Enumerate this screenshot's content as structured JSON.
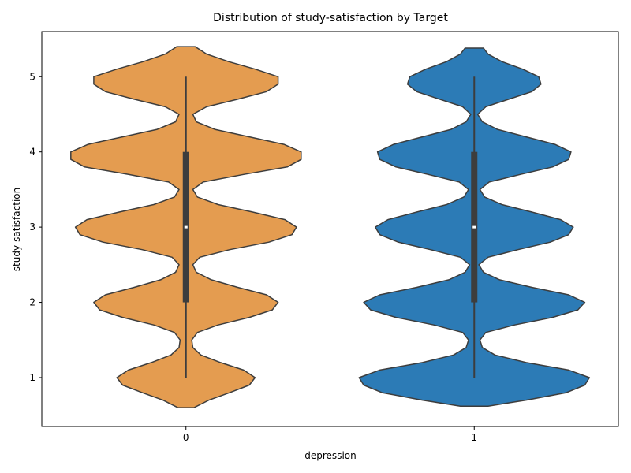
{
  "chart_data": {
    "type": "violin",
    "title": "Distribution of study-satisfaction by Target",
    "xlabel": "depression",
    "ylabel": "study-satisfaction",
    "categories": [
      "0",
      "1"
    ],
    "ylim": [
      0.35,
      5.6
    ],
    "yticks": [
      1,
      2,
      3,
      4,
      5
    ],
    "grid": false,
    "legend": "none",
    "series": [
      {
        "category": "0",
        "color": "#e49c50",
        "range": [
          0.6,
          5.4
        ],
        "density_profile": [
          [
            0.6,
            0.07
          ],
          [
            0.7,
            0.2
          ],
          [
            0.8,
            0.38
          ],
          [
            0.9,
            0.55
          ],
          [
            1.0,
            0.6
          ],
          [
            1.1,
            0.5
          ],
          [
            1.2,
            0.3
          ],
          [
            1.3,
            0.13
          ],
          [
            1.4,
            0.06
          ],
          [
            1.5,
            0.05
          ],
          [
            1.6,
            0.1
          ],
          [
            1.7,
            0.28
          ],
          [
            1.8,
            0.55
          ],
          [
            1.9,
            0.75
          ],
          [
            2.0,
            0.8
          ],
          [
            2.1,
            0.7
          ],
          [
            2.2,
            0.45
          ],
          [
            2.3,
            0.22
          ],
          [
            2.4,
            0.09
          ],
          [
            2.5,
            0.06
          ],
          [
            2.6,
            0.12
          ],
          [
            2.7,
            0.38
          ],
          [
            2.8,
            0.72
          ],
          [
            2.9,
            0.92
          ],
          [
            3.0,
            0.96
          ],
          [
            3.1,
            0.86
          ],
          [
            3.2,
            0.58
          ],
          [
            3.3,
            0.28
          ],
          [
            3.4,
            0.1
          ],
          [
            3.5,
            0.06
          ],
          [
            3.6,
            0.15
          ],
          [
            3.7,
            0.5
          ],
          [
            3.8,
            0.88
          ],
          [
            3.9,
            1.0
          ],
          [
            4.0,
            1.0
          ],
          [
            4.1,
            0.85
          ],
          [
            4.2,
            0.55
          ],
          [
            4.3,
            0.25
          ],
          [
            4.4,
            0.09
          ],
          [
            4.5,
            0.06
          ],
          [
            4.6,
            0.18
          ],
          [
            4.7,
            0.45
          ],
          [
            4.8,
            0.7
          ],
          [
            4.9,
            0.8
          ],
          [
            5.0,
            0.8
          ],
          [
            5.1,
            0.6
          ],
          [
            5.2,
            0.37
          ],
          [
            5.3,
            0.18
          ],
          [
            5.4,
            0.08
          ]
        ],
        "median": 3,
        "q1": 2,
        "q3": 4,
        "whisker_low": 1,
        "whisker_high": 5
      },
      {
        "category": "1",
        "color": "#2c7bb6",
        "range": [
          0.62,
          5.38
        ],
        "density_profile": [
          [
            0.62,
            0.12
          ],
          [
            0.7,
            0.45
          ],
          [
            0.8,
            0.8
          ],
          [
            0.9,
            0.96
          ],
          [
            1.0,
            1.0
          ],
          [
            1.1,
            0.82
          ],
          [
            1.2,
            0.45
          ],
          [
            1.3,
            0.18
          ],
          [
            1.4,
            0.07
          ],
          [
            1.5,
            0.05
          ],
          [
            1.6,
            0.1
          ],
          [
            1.7,
            0.35
          ],
          [
            1.8,
            0.68
          ],
          [
            1.9,
            0.9
          ],
          [
            2.0,
            0.96
          ],
          [
            2.1,
            0.82
          ],
          [
            2.2,
            0.5
          ],
          [
            2.3,
            0.22
          ],
          [
            2.4,
            0.08
          ],
          [
            2.5,
            0.04
          ],
          [
            2.6,
            0.12
          ],
          [
            2.7,
            0.38
          ],
          [
            2.8,
            0.66
          ],
          [
            2.9,
            0.82
          ],
          [
            3.0,
            0.86
          ],
          [
            3.1,
            0.75
          ],
          [
            3.2,
            0.5
          ],
          [
            3.3,
            0.24
          ],
          [
            3.4,
            0.09
          ],
          [
            3.5,
            0.05
          ],
          [
            3.6,
            0.13
          ],
          [
            3.7,
            0.4
          ],
          [
            3.8,
            0.68
          ],
          [
            3.9,
            0.82
          ],
          [
            4.0,
            0.84
          ],
          [
            4.1,
            0.7
          ],
          [
            4.2,
            0.45
          ],
          [
            4.3,
            0.2
          ],
          [
            4.4,
            0.07
          ],
          [
            4.5,
            0.03
          ],
          [
            4.6,
            0.1
          ],
          [
            4.7,
            0.3
          ],
          [
            4.8,
            0.5
          ],
          [
            4.9,
            0.58
          ],
          [
            5.0,
            0.56
          ],
          [
            5.1,
            0.42
          ],
          [
            5.2,
            0.24
          ],
          [
            5.3,
            0.12
          ],
          [
            5.38,
            0.08
          ]
        ],
        "median": 3,
        "q1": 2,
        "q3": 4,
        "whisker_low": 1,
        "whisker_high": 5
      }
    ]
  }
}
